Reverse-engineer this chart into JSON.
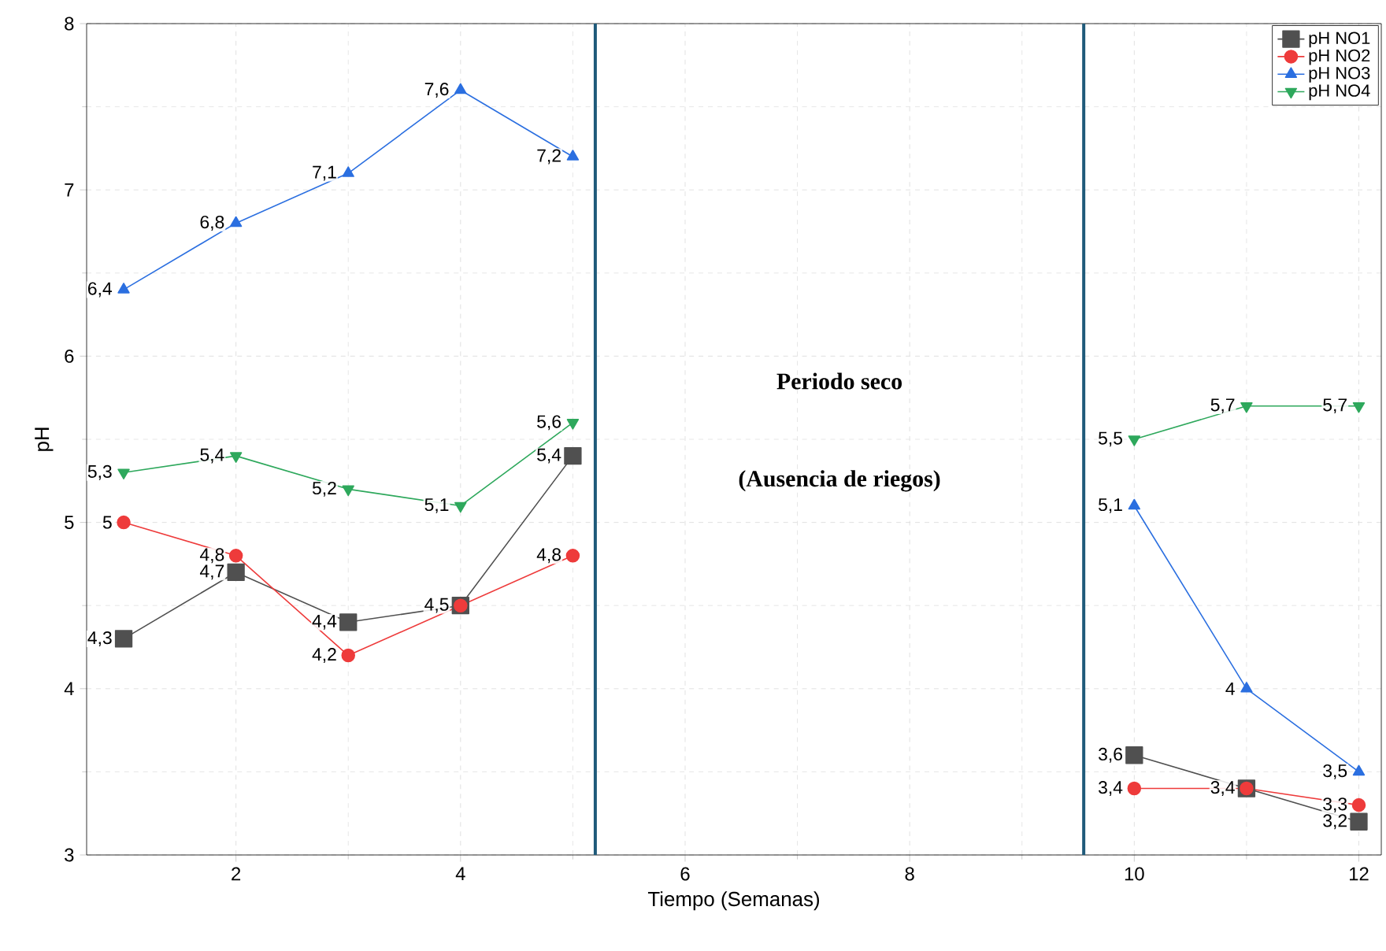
{
  "chart_data": {
    "type": "line",
    "xlabel": "Tiempo (Semanas)",
    "ylabel": "pH",
    "x": [
      1,
      2,
      3,
      4,
      5,
      6,
      7,
      8,
      9,
      10,
      11,
      12
    ],
    "xlim": [
      0.67,
      12.2
    ],
    "ylim": [
      3,
      8
    ],
    "xticks": [
      2,
      4,
      6,
      8,
      10,
      12
    ],
    "yticks": [
      3,
      4,
      5,
      6,
      7,
      8
    ],
    "grid": true,
    "legend": "top right",
    "line_style": "solid",
    "series": [
      {
        "name": "pH NO1",
        "color": "#505050",
        "marker": "square",
        "values": [
          4.3,
          4.7,
          4.4,
          4.5,
          5.4,
          null,
          null,
          null,
          null,
          3.6,
          3.4,
          3.2
        ],
        "value_labels": [
          "4,3",
          "4,7",
          "4,4",
          null,
          "5,4",
          null,
          null,
          null,
          null,
          "3,6",
          null,
          "3,2"
        ]
      },
      {
        "name": "pH NO2",
        "color": "#ee3b3b",
        "marker": "circle",
        "values": [
          5,
          4.8,
          4.2,
          4.5,
          4.8,
          null,
          null,
          null,
          null,
          3.4,
          3.4,
          3.3
        ],
        "value_labels": [
          "5",
          "4,8",
          "4,2",
          "4,5",
          "4,8",
          null,
          null,
          null,
          null,
          "3,4",
          "3,4",
          "3,3"
        ]
      },
      {
        "name": "pH NO3",
        "color": "#2b6fe0",
        "marker": "triangle",
        "values": [
          6.4,
          6.8,
          7.1,
          7.6,
          7.2,
          null,
          null,
          null,
          null,
          5.1,
          4,
          3.5
        ],
        "value_labels": [
          "6,4",
          "6,8",
          "7,1",
          "7,6",
          "7,2",
          null,
          null,
          null,
          null,
          "5,1",
          "4",
          "3,5"
        ]
      },
      {
        "name": "pH NO4",
        "color": "#2ea85c",
        "marker": "triangle-down",
        "values": [
          5.3,
          5.4,
          5.2,
          5.1,
          5.6,
          null,
          null,
          null,
          null,
          5.5,
          5.7,
          5.7
        ],
        "value_labels": [
          "5,3",
          "5,4",
          "5,2",
          "5,1",
          "5,6",
          null,
          null,
          null,
          null,
          "5,5",
          "5,7",
          "5,7"
        ]
      }
    ],
    "ref_lines": [
      {
        "axis": "x",
        "value": 5.2,
        "color": "#1f5a7a"
      },
      {
        "axis": "x",
        "value": 9.55,
        "color": "#1f5a7a"
      }
    ],
    "annotations": [
      "**Periodo seco**",
      "**(Ausencia de riegos)**"
    ]
  }
}
